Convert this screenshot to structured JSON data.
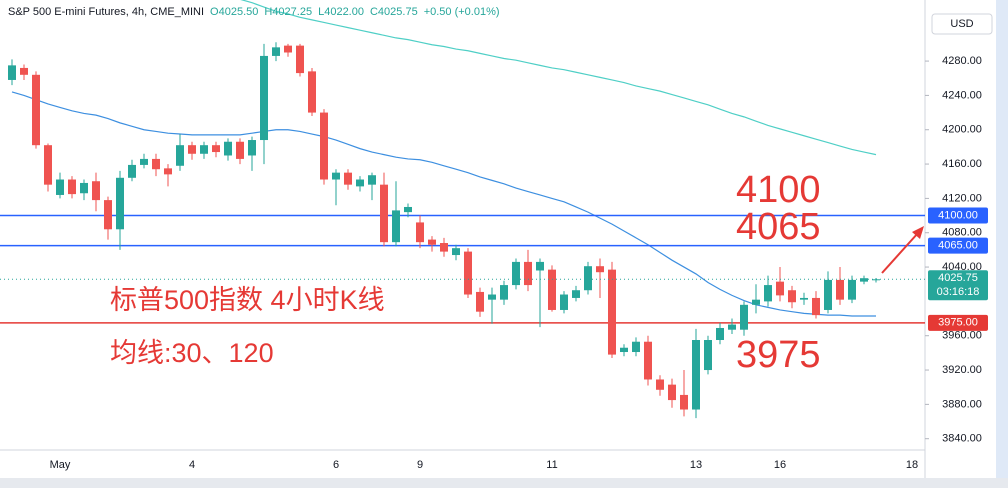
{
  "chart_data": {
    "type": "candlestick",
    "title": "S&P 500 E-mini Futures, 4h, CME_MINI",
    "ohlc_header": [
      "O4025.50",
      "H4027.25",
      "L4022.00",
      "C4025.75",
      "+0.50 (+0.01%)"
    ],
    "currency": "USD",
    "up_color": "#26a69a",
    "down_color": "#ef5350",
    "categories": [
      null,
      null,
      null,
      null,
      "May",
      null,
      null,
      null,
      null,
      null,
      null,
      null,
      null,
      null,
      null,
      "4",
      null,
      null,
      null,
      null,
      null,
      null,
      null,
      null,
      null,
      null,
      null,
      "6",
      null,
      null,
      null,
      null,
      null,
      null,
      "9",
      null,
      null,
      null,
      null,
      null,
      null,
      null,
      null,
      null,
      null,
      "11",
      null,
      null,
      null,
      null,
      null,
      null,
      null,
      null,
      null,
      null,
      null,
      "13",
      null,
      null,
      null,
      null,
      null,
      null,
      "16",
      null,
      null,
      null,
      null,
      null,
      null,
      null,
      null,
      null,
      null,
      "18"
    ],
    "open": [
      4258,
      4272,
      4264,
      4182,
      4124,
      4142,
      4126,
      4140,
      4118,
      4084,
      4144,
      4159,
      4166,
      4155,
      4158,
      4182,
      4172,
      4182,
      4170,
      4186,
      4170,
      4188,
      4286,
      4298,
      4298,
      4268,
      4220,
      4142,
      4150,
      4134,
      4136,
      4136,
      4069,
      4104,
      4092,
      4072,
      4068,
      4054,
      4058,
      4011,
      4002,
      4002,
      4019,
      4046,
      4036,
      4037,
      3990,
      4004,
      4013,
      4041,
      4037,
      3941,
      3941,
      3953,
      3909,
      3903,
      3891,
      3874,
      3920,
      3955,
      3967,
      3967,
      3996,
      4000,
      4023,
      4013,
      4002,
      4004,
      3990,
      4025,
      4002,
      4023,
      4025.5,
      null,
      null,
      null
    ],
    "high": [
      4282,
      4276,
      4268,
      4184,
      4150,
      4146,
      4142,
      4150,
      4122,
      4152,
      4165,
      4172,
      4172,
      4160,
      4195,
      4186,
      4186,
      4186,
      4190,
      4190,
      4192,
      4300,
      4302,
      4300,
      4300,
      4272,
      4224,
      4154,
      4154,
      4146,
      4150,
      4150,
      4140,
      4114,
      4100,
      4076,
      4074,
      4066,
      4062,
      4016,
      4016,
      4024,
      4050,
      4060,
      4050,
      4042,
      4012,
      4018,
      4046,
      4050,
      4046,
      3950,
      3958,
      3960,
      3914,
      3910,
      3920,
      3968,
      3960,
      3975,
      3980,
      4000,
      4020,
      4030,
      4040,
      4018,
      4010,
      4012,
      4035,
      4040,
      4030,
      4030,
      4027.25,
      null,
      null,
      null
    ],
    "low": [
      4252,
      4258,
      4178,
      4128,
      4120,
      4120,
      4118,
      4105,
      4072,
      4060,
      4140,
      4155,
      4146,
      4134,
      4152,
      4165,
      4166,
      4168,
      4164,
      4160,
      4152,
      4160,
      4280,
      4285,
      4262,
      4216,
      4136,
      4112,
      4130,
      4128,
      4118,
      4064,
      4064,
      4098,
      4062,
      4058,
      4052,
      4048,
      4004,
      3982,
      3974,
      3996,
      4014,
      4012,
      3970,
      3988,
      3986,
      4000,
      4008,
      4004,
      3934,
      3936,
      3936,
      3902,
      3890,
      3876,
      3866,
      3864,
      3915,
      3950,
      3962,
      3960,
      3986,
      3994,
      4000,
      3992,
      3996,
      3980,
      3986,
      3996,
      3998,
      4020,
      4022,
      null,
      null,
      null
    ],
    "close": [
      4275,
      4264,
      4182,
      4136,
      4142,
      4125,
      4138,
      4118,
      4084,
      4144,
      4159,
      4166,
      4154,
      4148,
      4182,
      4172,
      4182,
      4174,
      4186,
      4166,
      4188,
      4286,
      4296,
      4290,
      4266,
      4220,
      4142,
      4150,
      4136,
      4142,
      4147,
      4069,
      4106,
      4110,
      4069,
      4066,
      4058,
      4062,
      4008,
      3988,
      4008,
      4019,
      4046,
      4019,
      4046,
      3990,
      4008,
      4013,
      4041,
      4034,
      3938,
      3946,
      3953,
      3909,
      3897,
      3885,
      3874,
      3955,
      3955,
      3969,
      3973,
      3996,
      4002,
      4019,
      4007,
      3999,
      4004,
      3984,
      4025,
      4002,
      4025,
      4027,
      4025.75,
      null,
      null,
      null
    ],
    "series": [
      {
        "name": "MA30",
        "color": "#3d8fe0",
        "values": [
          4244,
          4240,
          4235,
          4230,
          4226,
          4222,
          4219,
          4217,
          4213,
          4208,
          4204,
          4200,
          4198,
          4196,
          4195,
          4194,
          4194,
          4194,
          4194,
          4194,
          4196,
          4198,
          4200,
          4200,
          4198,
          4195,
          4192,
          4188,
          4183,
          4178,
          4174,
          4171,
          4168,
          4166,
          4165,
          4162,
          4158,
          4154,
          4150,
          4145,
          4141,
          4137,
          4132,
          4128,
          4124,
          4120,
          4116,
          4110,
          4104,
          4097,
          4090,
          4082,
          4074,
          4066,
          4057,
          4048,
          4040,
          4032,
          4022,
          4014,
          4007,
          4001,
          3996,
          3993,
          3990,
          3988,
          3986,
          3985,
          3984,
          3984,
          3983,
          3983,
          3983,
          null,
          null,
          null
        ]
      },
      {
        "name": "MA120",
        "color": "#4fcfc6",
        "values": [
          null,
          null,
          null,
          null,
          null,
          null,
          null,
          null,
          null,
          null,
          null,
          null,
          null,
          null,
          null,
          null,
          null,
          null,
          null,
          4352,
          4348,
          4343,
          4338,
          4335,
          4331,
          4328,
          4325,
          4322,
          4319,
          4316,
          4313,
          4310,
          4307,
          4305,
          4302,
          4299,
          4297,
          4294,
          4292,
          4289,
          4286,
          4283,
          4281,
          4278,
          4275,
          4272,
          4270,
          4267,
          4264,
          4261,
          4258,
          4255,
          4251,
          4248,
          4245,
          4241,
          4237,
          4233,
          4229,
          4224,
          4219,
          4215,
          4210,
          4205,
          4201,
          4197,
          4193,
          4189,
          4185,
          4181,
          4177,
          4174,
          4171,
          null,
          null,
          null
        ]
      }
    ],
    "ylim": [
      3828,
      4350
    ],
    "yticks": [
      {
        "value": 3840,
        "label": "3840.00"
      },
      {
        "value": 3880,
        "label": "3880.00"
      },
      {
        "value": 3920,
        "label": "3920.00"
      },
      {
        "value": 3960,
        "label": "3960.00"
      },
      {
        "value": 4040,
        "label": "4040.00"
      },
      {
        "value": 4080,
        "label": "4080.00"
      },
      {
        "value": 4120,
        "label": "4120.00"
      },
      {
        "value": 4160,
        "label": "4160.00"
      },
      {
        "value": 4200,
        "label": "4200.00"
      },
      {
        "value": 4240,
        "label": "4240.00"
      },
      {
        "value": 4280,
        "label": "4280.00"
      }
    ],
    "levels": [
      {
        "value": 4100,
        "label": "4100.00",
        "color": "#2962ff"
      },
      {
        "value": 4065,
        "label": "4065.00",
        "color": "#2962ff"
      },
      {
        "value": 3975,
        "label": "3975.00",
        "color": "#e53935"
      }
    ],
    "last_price": {
      "value": 4025.75,
      "label": "4025.75",
      "countdown": "03:16:18"
    },
    "annotations": [
      "4100",
      "4065",
      "3975",
      "标普500指数 4小时K线",
      "均线:30、120"
    ]
  }
}
